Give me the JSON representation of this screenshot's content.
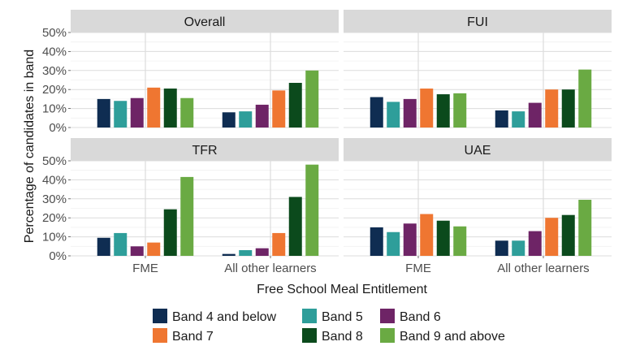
{
  "chart_data": {
    "type": "bar",
    "xlabel": "Free School Meal Entitlement",
    "ylabel": "Percentage of candidates in band",
    "categories": [
      "FME",
      "All other learners"
    ],
    "ylim": [
      0,
      50
    ],
    "yticks": [
      "0%",
      "10%",
      "20%",
      "30%",
      "40%",
      "50%"
    ],
    "grid": true,
    "legend_position": "bottom",
    "series": [
      {
        "name": "Band 4 and below",
        "color": "#0f2d52"
      },
      {
        "name": "Band 5",
        "color": "#2e9e9a"
      },
      {
        "name": "Band 6",
        "color": "#6e2466"
      },
      {
        "name": "Band 7",
        "color": "#ef7631"
      },
      {
        "name": "Band 8",
        "color": "#0b4a1c"
      },
      {
        "name": "Band 9 and above",
        "color": "#6aaa43"
      }
    ],
    "panels": [
      {
        "title": "Overall",
        "values": [
          [
            15,
            14,
            15.5,
            21,
            20.5,
            15.5
          ],
          [
            8,
            8.5,
            12,
            19.5,
            23.5,
            30
          ]
        ]
      },
      {
        "title": "FUI",
        "values": [
          [
            16,
            13.5,
            15,
            20.5,
            17.5,
            18
          ],
          [
            9,
            8.5,
            13,
            20,
            20,
            30.5
          ]
        ]
      },
      {
        "title": "TFR",
        "values": [
          [
            9.5,
            12,
            5,
            7,
            24.5,
            41.5
          ],
          [
            1,
            3,
            4,
            12,
            31,
            48
          ]
        ]
      },
      {
        "title": "UAE",
        "values": [
          [
            15,
            12.5,
            17,
            22,
            18.5,
            15.5
          ],
          [
            8,
            8,
            13,
            20,
            21.5,
            29.5
          ]
        ]
      }
    ]
  }
}
